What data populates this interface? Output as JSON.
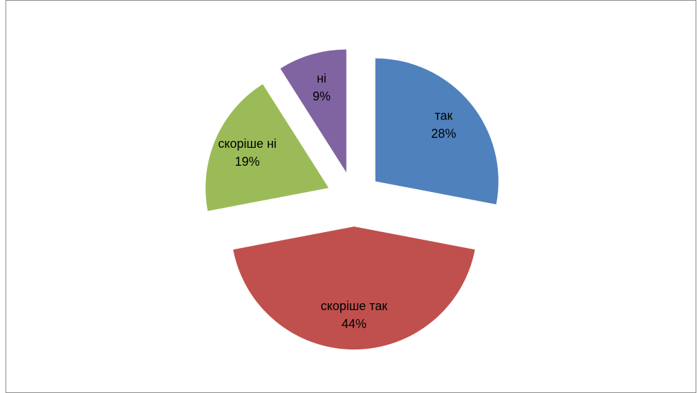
{
  "chart_data": {
    "type": "pie",
    "categories": [
      "так",
      "скоріше так",
      "скоріше ні",
      "ні"
    ],
    "values": [
      28,
      44,
      19,
      9
    ],
    "value_labels": [
      "28%",
      "44%",
      "19%",
      "9%"
    ],
    "colors": [
      "#4f81bd",
      "#c0504d",
      "#9bbb59",
      "#8064a2"
    ],
    "exploded": true
  }
}
